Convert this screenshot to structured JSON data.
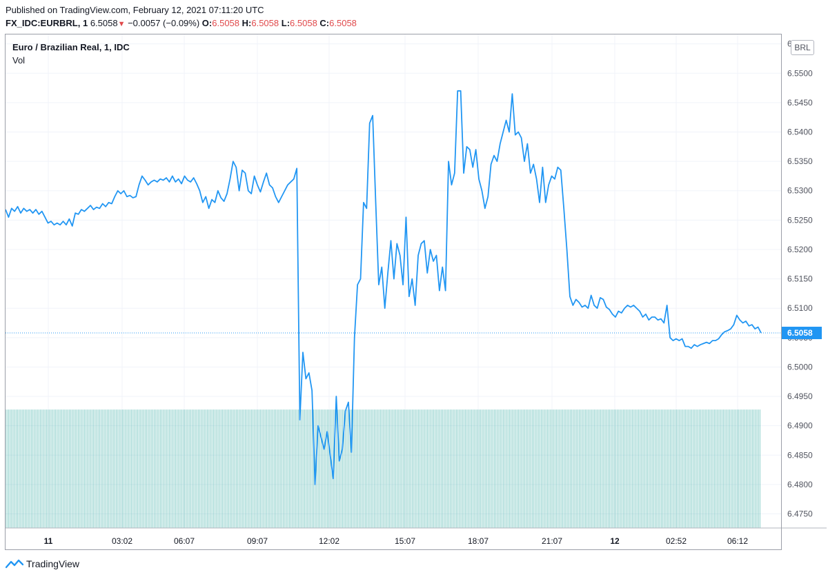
{
  "header": {
    "published": "Published on TradingView.com, February 12, 2021 07:11:20 UTC",
    "symbol": "FX_IDC:EURBRL, 1",
    "last": "6.5058",
    "change": "−0.0057 (−0.09%)",
    "o_label": "O:",
    "o_value": "6.5058",
    "h_label": "H:",
    "h_value": "6.5058",
    "l_label": "L:",
    "l_value": "6.5058",
    "c_label": "C:",
    "c_value": "6.5058"
  },
  "legend": {
    "title": "Euro / Brazilian Real, 1, IDC",
    "vol": "Vol"
  },
  "currency_badge": "BRL",
  "footer": {
    "brand": "TradingView"
  },
  "colors": {
    "line": "#2196f3",
    "volume": "#26a69a",
    "price_label_bg": "#2196f3",
    "down": "#e0494b"
  },
  "chart_data": {
    "type": "line",
    "ylim": [
      6.4726,
      6.5566
    ],
    "y_ticks": [
      "6.4750",
      "6.4800",
      "6.4850",
      "6.4900",
      "6.4950",
      "6.5000",
      "6.5050",
      "6.5100",
      "6.5150",
      "6.5200",
      "6.5250",
      "6.5300",
      "6.5350",
      "6.5400",
      "6.5450",
      "6.5500",
      "6.5550"
    ],
    "y_tick_values": [
      6.475,
      6.48,
      6.485,
      6.49,
      6.495,
      6.5,
      6.505,
      6.51,
      6.515,
      6.52,
      6.525,
      6.53,
      6.535,
      6.54,
      6.545,
      6.55,
      6.555
    ],
    "x_ticks": [
      "11",
      "03:02",
      "06:07",
      "09:07",
      "12:02",
      "15:07",
      "18:07",
      "21:07",
      "12",
      "02:52",
      "06:12"
    ],
    "x_tick_bold": [
      true,
      false,
      false,
      false,
      false,
      false,
      false,
      false,
      true,
      false,
      false
    ],
    "last_price": 6.5058,
    "last_price_label": "6.5058",
    "volume_level": 0.24,
    "series": [
      {
        "values": [
          6.5268,
          6.5255,
          6.527,
          6.5265,
          6.5273,
          6.5262,
          6.527,
          6.5265,
          6.5268,
          6.5262,
          6.5268,
          6.526,
          6.5265,
          6.5255,
          6.5245,
          6.5248,
          6.5242,
          6.5245,
          6.5242,
          6.5248,
          6.5242,
          6.5252,
          6.524,
          6.5262,
          6.526,
          6.5268,
          6.5265,
          6.527,
          6.5275,
          6.5268,
          6.5272,
          6.527,
          6.5278,
          6.5273,
          6.528,
          6.5278,
          6.529,
          6.53,
          6.5295,
          6.53,
          6.529,
          6.5292,
          6.5288,
          6.529,
          6.531,
          6.5325,
          6.5318,
          6.531,
          6.5315,
          6.5318,
          6.5315,
          6.532,
          6.5318,
          6.5322,
          6.5315,
          6.5325,
          6.5315,
          6.532,
          6.5312,
          6.5325,
          6.5318,
          6.5315,
          6.5322,
          6.5312,
          6.53,
          6.528,
          6.529,
          6.527,
          6.5285,
          6.528,
          6.53,
          6.5288,
          6.5282,
          6.5295,
          6.532,
          6.535,
          6.534,
          6.53,
          6.5335,
          6.533,
          6.53,
          6.5295,
          6.5325,
          6.531,
          6.5298,
          6.5315,
          6.533,
          6.531,
          6.5305,
          6.529,
          6.528,
          6.529,
          6.53,
          6.531,
          6.5315,
          6.532,
          6.5338,
          6.491,
          6.5025,
          6.498,
          6.499,
          6.496,
          6.48,
          6.49,
          6.488,
          6.486,
          6.489,
          6.485,
          6.481,
          6.495,
          6.484,
          6.486,
          6.4925,
          6.494,
          6.4855,
          6.505,
          6.514,
          6.515,
          6.528,
          6.527,
          6.5415,
          6.5428,
          6.528,
          6.514,
          6.517,
          6.51,
          6.516,
          6.5215,
          6.515,
          6.521,
          6.519,
          6.514,
          6.5255,
          6.512,
          6.515,
          6.5105,
          6.519,
          6.521,
          6.5215,
          6.516,
          6.52,
          6.518,
          6.519,
          6.513,
          6.517,
          6.513,
          6.535,
          6.531,
          6.533,
          6.547,
          6.547,
          6.533,
          6.5375,
          6.537,
          6.534,
          6.537,
          6.532,
          6.53,
          6.527,
          6.529,
          6.5345,
          6.536,
          6.535,
          6.538,
          6.54,
          6.542,
          6.54,
          6.5465,
          6.5395,
          6.54,
          6.539,
          6.535,
          6.538,
          6.533,
          6.5345,
          6.532,
          6.528,
          6.534,
          6.528,
          6.531,
          6.5325,
          6.532,
          6.534,
          6.5335,
          6.527,
          6.52,
          6.512,
          6.5105,
          6.5115,
          6.511,
          6.5102,
          6.5105,
          6.51,
          6.5122,
          6.5105,
          6.51,
          6.5118,
          6.5115,
          6.5102,
          6.5098,
          6.509,
          6.5085,
          6.5095,
          6.5092,
          6.51,
          6.5105,
          6.5102,
          6.5105,
          6.51,
          6.5095,
          6.5085,
          6.509,
          6.508,
          6.5085,
          6.5085,
          6.508,
          6.5082,
          6.5075,
          6.5105,
          6.505,
          6.5045,
          6.5048,
          6.5045,
          6.5048,
          6.5035,
          6.5035,
          6.5032,
          6.5038,
          6.5035,
          6.5038,
          6.504,
          6.5042,
          6.504,
          6.5045,
          6.5045,
          6.5048,
          6.5055,
          6.506,
          6.5062,
          6.5065,
          6.5072,
          6.5088,
          6.508,
          6.5075,
          6.5078,
          6.507,
          6.5072,
          6.5065,
          6.5068,
          6.5058
        ]
      }
    ]
  }
}
